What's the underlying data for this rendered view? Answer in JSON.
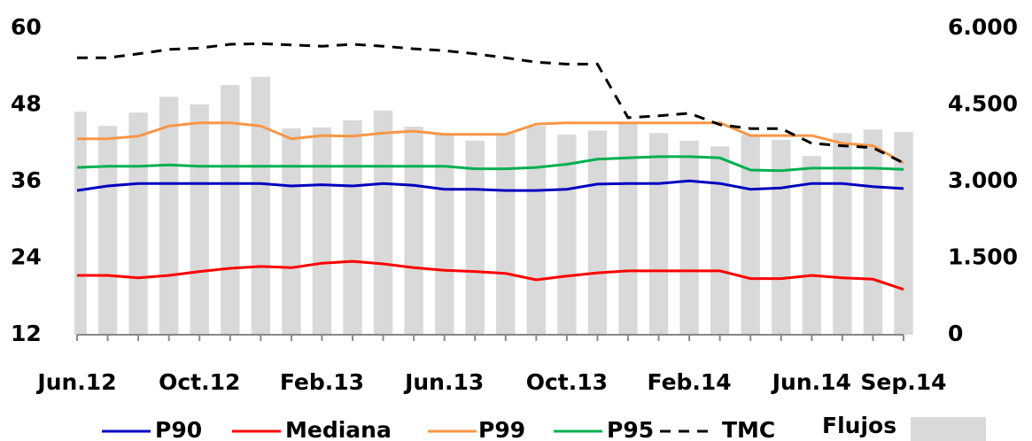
{
  "chart_data": {
    "type": "combo",
    "categories": [
      "Jun.12",
      null,
      null,
      null,
      "Oct.12",
      null,
      null,
      null,
      "Feb.13",
      null,
      null,
      null,
      "Jun.13",
      null,
      null,
      null,
      "Oct.13",
      null,
      null,
      null,
      "Feb.14",
      null,
      null,
      null,
      "Jun.14",
      null,
      null,
      "Sep.14"
    ],
    "ylim": [
      12,
      60
    ],
    "yticks": [
      12,
      24,
      36,
      48,
      60
    ],
    "y2lim": [
      0,
      6000
    ],
    "y2ticks": [
      0,
      {
        "value": 1500,
        "label": "1.500"
      },
      {
        "value": 3000,
        "label": "3.000"
      },
      {
        "value": 4500,
        "label": "4.500"
      },
      {
        "value": 6000,
        "label": "6.000"
      }
    ],
    "series": [
      {
        "name": "P90",
        "type": "line",
        "color": "#0000c0",
        "values": [
          34.6,
          35.3,
          35.7,
          35.7,
          35.7,
          35.7,
          35.7,
          35.3,
          35.5,
          35.3,
          35.7,
          35.4,
          34.8,
          34.8,
          34.6,
          34.6,
          34.8,
          35.6,
          35.7,
          35.7,
          36.1,
          35.7,
          34.8,
          35.0,
          35.7,
          35.7,
          35.2,
          34.9
        ]
      },
      {
        "name": "Mediana",
        "type": "line",
        "color": "#ff0000",
        "values": [
          21.3,
          21.3,
          20.9,
          21.3,
          21.9,
          22.4,
          22.7,
          22.5,
          23.2,
          23.5,
          23.1,
          22.5,
          22.1,
          21.9,
          21.6,
          20.6,
          21.2,
          21.7,
          22.0,
          22.0,
          22.0,
          22.0,
          20.8,
          20.8,
          21.3,
          20.9,
          20.7,
          19.1
        ]
      },
      {
        "name": "P99",
        "type": "line",
        "color": "#f79646",
        "values": [
          42.7,
          42.7,
          43.1,
          44.7,
          45.2,
          45.2,
          44.7,
          42.7,
          43.2,
          43.1,
          43.6,
          43.9,
          43.4,
          43.4,
          43.4,
          45.0,
          45.2,
          45.2,
          45.2,
          45.2,
          45.2,
          45.2,
          43.2,
          43.2,
          43.2,
          42.0,
          41.6,
          38.9
        ]
      },
      {
        "name": "P95",
        "type": "line",
        "color": "#00b050",
        "values": [
          38.2,
          38.4,
          38.4,
          38.6,
          38.4,
          38.4,
          38.4,
          38.4,
          38.4,
          38.4,
          38.4,
          38.4,
          38.4,
          38.0,
          38.0,
          38.2,
          38.7,
          39.5,
          39.7,
          39.9,
          39.9,
          39.7,
          37.8,
          37.7,
          38.1,
          38.1,
          38.1,
          37.9
        ]
      },
      {
        "name": "TMC",
        "type": "line",
        "color": "#000000",
        "dash": true,
        "values": [
          55.4,
          55.4,
          56.0,
          56.7,
          56.9,
          57.5,
          57.6,
          57.4,
          57.2,
          57.5,
          57.2,
          56.8,
          56.5,
          56.0,
          55.4,
          54.7,
          54.4,
          54.4,
          46.0,
          46.3,
          46.7,
          44.9,
          44.3,
          44.3,
          42.0,
          41.6,
          41.3,
          38.9
        ]
      },
      {
        "name": "Flujos",
        "type": "bar",
        "axis": "y2",
        "color": "#d9d9d9",
        "values": [
          4370,
          4090,
          4350,
          4660,
          4510,
          4890,
          5050,
          4040,
          4060,
          4200,
          4390,
          4075,
          3920,
          3800,
          3950,
          4090,
          3920,
          4000,
          4140,
          3950,
          3800,
          3690,
          3920,
          3815,
          3500,
          3950,
          4020,
          3970
        ]
      }
    ]
  }
}
